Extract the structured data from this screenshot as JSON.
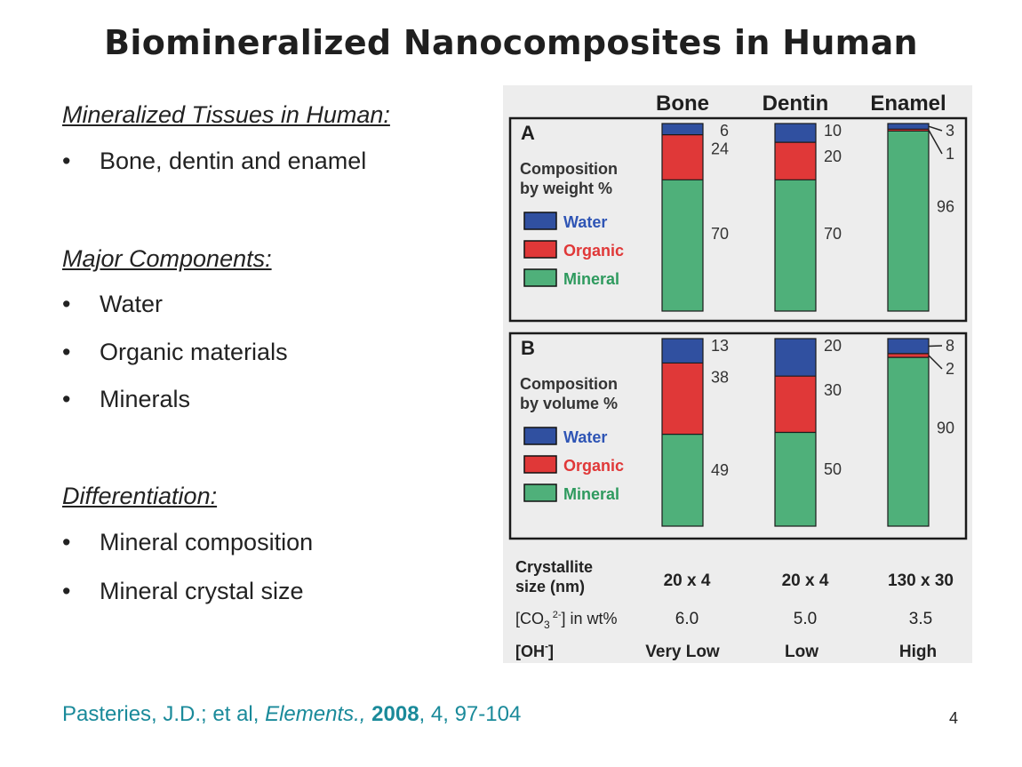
{
  "slide": {
    "title": "Biomineralized Nanocomposites in Human",
    "sections": [
      {
        "heading": "Mineralized Tissues in Human:",
        "bullets": [
          "Bone, dentin and enamel"
        ]
      },
      {
        "heading": "Major Components:",
        "bullets": [
          "Water",
          "Organic materials",
          "Minerals"
        ]
      },
      {
        "heading": "Differentiation:",
        "bullets": [
          "Mineral composition",
          "Mineral crystal size"
        ]
      }
    ],
    "bullet_char": "•",
    "citation": {
      "authors": "Pasteries, J.D.; et al, ",
      "journal": "Elements.,",
      "year": "2008",
      "rest": ", 4, 97-104"
    },
    "page_number": "4"
  },
  "chart_data": {
    "type": "bar",
    "stacked": true,
    "normalized": true,
    "categories": [
      "Bone",
      "Dentin",
      "Enamel"
    ],
    "colors": {
      "Water": "#3050a0",
      "Organic": "#e03838",
      "Mineral": "#4fb07a"
    },
    "legend": [
      "Water",
      "Organic",
      "Mineral"
    ],
    "legend_colors_text": {
      "Water": "#2f55b5",
      "Organic": "#e03838",
      "Mineral": "#2e9a5e"
    },
    "panels": [
      {
        "label": "A",
        "title": [
          "Composition",
          "by weight %"
        ],
        "series": [
          {
            "name": "Water",
            "values": [
              6,
              10,
              3
            ]
          },
          {
            "name": "Organic",
            "values": [
              24,
              20,
              1
            ]
          },
          {
            "name": "Mineral",
            "values": [
              70,
              70,
              96
            ]
          }
        ]
      },
      {
        "label": "B",
        "title": [
          "Composition",
          "by volume %"
        ],
        "series": [
          {
            "name": "Water",
            "values": [
              13,
              20,
              8
            ]
          },
          {
            "name": "Organic",
            "values": [
              38,
              30,
              2
            ]
          },
          {
            "name": "Mineral",
            "values": [
              49,
              50,
              90
            ]
          }
        ]
      }
    ],
    "table": {
      "rows": [
        {
          "label": [
            "Crystallite",
            "size (nm)"
          ],
          "values": [
            "20 x 4",
            "20 x 4",
            "130 x 30"
          ],
          "bold": true
        },
        {
          "label": [
            "[CO",
            "3",
            "2-",
            "] in wt%"
          ],
          "values": [
            "6.0",
            "5.0",
            "3.5"
          ],
          "bold": false
        },
        {
          "label": [
            "[OH",
            "-",
            "]"
          ],
          "values": [
            "Very Low",
            "Low",
            "High"
          ],
          "bold": true
        }
      ]
    }
  }
}
